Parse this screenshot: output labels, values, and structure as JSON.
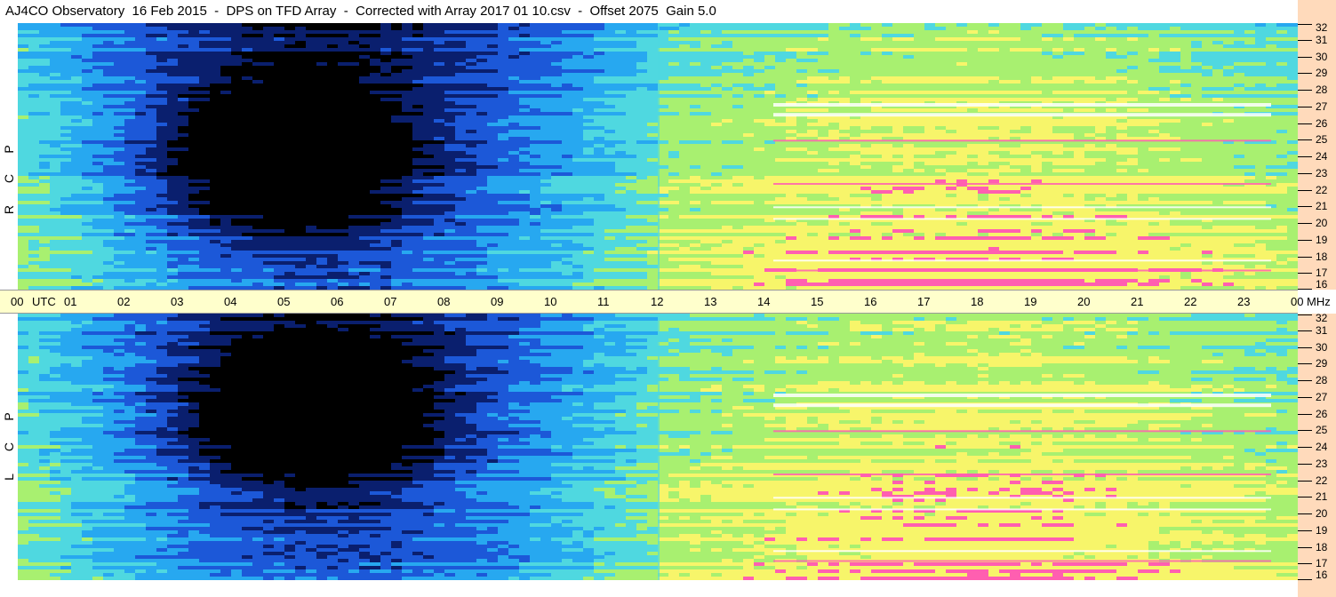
{
  "title": "AJ4CO Observatory  16 Feb 2015  -  DPS on TFD Array  -  Corrected with Array 2017 01 10.csv  -  Offset 2075  Gain 5.0",
  "chart_data": [
    {
      "type": "heatmap",
      "name": "RCP",
      "polarization_label": [
        "R",
        "C",
        "P"
      ],
      "x_ticks": [
        "00",
        "01",
        "02",
        "03",
        "04",
        "05",
        "06",
        "07",
        "08",
        "09",
        "10",
        "11",
        "12",
        "13",
        "14",
        "15",
        "16",
        "17",
        "18",
        "19",
        "20",
        "21",
        "22",
        "23",
        "00"
      ],
      "x_unit": "UTC",
      "y_ticks": [
        16,
        17,
        18,
        19,
        20,
        21,
        22,
        23,
        24,
        25,
        26,
        27,
        28,
        29,
        30,
        31,
        32
      ],
      "y_unit": "MHz",
      "xlim": [
        0,
        24
      ],
      "ylim": [
        16,
        32
      ],
      "colors": [
        "#000000",
        "#0a1f6e",
        "#1c58d8",
        "#27a8f0",
        "#4fd8e0",
        "#a8f070",
        "#f7f56a",
        "#ff5fb0",
        "#ffffff"
      ]
    },
    {
      "type": "heatmap",
      "name": "LCP",
      "polarization_label": [
        "L",
        "C",
        "P"
      ],
      "x_ticks": [
        "00",
        "01",
        "02",
        "03",
        "04",
        "05",
        "06",
        "07",
        "08",
        "09",
        "10",
        "11",
        "12",
        "13",
        "14",
        "15",
        "16",
        "17",
        "18",
        "19",
        "20",
        "21",
        "22",
        "23",
        "00"
      ],
      "x_unit": "UTC",
      "y_ticks": [
        16,
        17,
        18,
        19,
        20,
        21,
        22,
        23,
        24,
        25,
        26,
        27,
        28,
        29,
        30,
        31,
        32
      ],
      "y_unit": "MHz",
      "xlim": [
        0,
        24
      ],
      "ylim": [
        16,
        32
      ],
      "colors": [
        "#000000",
        "#0a1f6e",
        "#1c58d8",
        "#27a8f0",
        "#4fd8e0",
        "#a8f070",
        "#f7f56a",
        "#ff5fb0",
        "#ffffff"
      ]
    }
  ],
  "axis": {
    "utc_label": "UTC",
    "mhz_label": "MHz"
  }
}
